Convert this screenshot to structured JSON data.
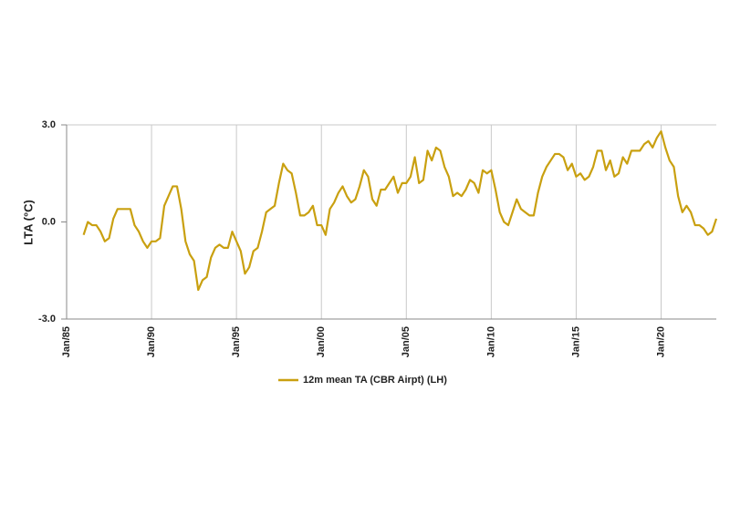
{
  "chart_data": {
    "type": "line",
    "y_label": "LTA (°C)",
    "categories": [
      "Jan/85",
      null,
      null,
      null,
      null,
      null,
      null,
      null,
      null,
      null,
      null,
      null,
      null,
      null,
      null,
      null,
      null,
      null,
      null,
      null,
      "Jan/90",
      null,
      null,
      null,
      null,
      null,
      null,
      null,
      null,
      null,
      null,
      null,
      null,
      null,
      null,
      null,
      null,
      null,
      null,
      null,
      "Jan/95",
      null,
      null,
      null,
      null,
      null,
      null,
      null,
      null,
      null,
      null,
      null,
      null,
      null,
      null,
      null,
      null,
      null,
      null,
      null,
      "Jan/00",
      null,
      null,
      null,
      null,
      null,
      null,
      null,
      null,
      null,
      null,
      null,
      null,
      null,
      null,
      null,
      null,
      null,
      null,
      null,
      "Jan/05",
      null,
      null,
      null,
      null,
      null,
      null,
      null,
      null,
      null,
      null,
      null,
      null,
      null,
      null,
      null,
      null,
      null,
      null,
      null,
      "Jan/10",
      null,
      null,
      null,
      null,
      null,
      null,
      null,
      null,
      null,
      null,
      null,
      null,
      null,
      null,
      null,
      null,
      null,
      null,
      null,
      "Jan/15",
      null,
      null,
      null,
      null,
      null,
      null,
      null,
      null,
      null,
      null,
      null,
      null,
      null,
      null,
      null,
      null,
      null,
      null,
      null,
      "Jan/20",
      null,
      null,
      null,
      null,
      null,
      null,
      null,
      null,
      null,
      null,
      null,
      null,
      null
    ],
    "series": [
      {
        "name": "12m mean TA (CBR Airpt) (LH)",
        "color": "#c9a010",
        "values": [
          null,
          null,
          null,
          null,
          -0.4,
          0.0,
          -0.1,
          -0.1,
          -0.3,
          -0.6,
          -0.5,
          0.1,
          0.4,
          0.4,
          0.4,
          0.4,
          -0.1,
          -0.3,
          -0.6,
          -0.8,
          -0.6,
          -0.6,
          -0.5,
          0.5,
          0.8,
          1.1,
          1.1,
          0.4,
          -0.6,
          -1.0,
          -1.2,
          -2.1,
          -1.8,
          -1.7,
          -1.1,
          -0.8,
          -0.7,
          -0.8,
          -0.8,
          -0.3,
          -0.6,
          -0.9,
          -1.6,
          -1.4,
          -0.9,
          -0.8,
          -0.3,
          0.3,
          0.4,
          0.5,
          1.2,
          1.8,
          1.6,
          1.5,
          0.9,
          0.2,
          0.2,
          0.3,
          0.5,
          -0.1,
          -0.1,
          -0.4,
          0.4,
          0.6,
          0.9,
          1.1,
          0.8,
          0.6,
          0.7,
          1.1,
          1.6,
          1.4,
          0.7,
          0.5,
          1.0,
          1.0,
          1.2,
          1.4,
          0.9,
          1.2,
          1.2,
          1.4,
          2.0,
          1.2,
          1.3,
          2.2,
          1.9,
          2.3,
          2.2,
          1.7,
          1.4,
          0.8,
          0.9,
          0.8,
          1.0,
          1.3,
          1.2,
          0.9,
          1.6,
          1.5,
          1.6,
          1.0,
          0.3,
          0.0,
          -0.1,
          0.3,
          0.7,
          0.4,
          0.3,
          0.2,
          0.2,
          0.9,
          1.4,
          1.7,
          1.9,
          2.1,
          2.1,
          2.0,
          1.6,
          1.8,
          1.4,
          1.5,
          1.3,
          1.4,
          1.7,
          2.2,
          2.2,
          1.6,
          1.9,
          1.4,
          1.5,
          2.0,
          1.8,
          2.2,
          2.2,
          2.2,
          2.4,
          2.5,
          2.3,
          2.6,
          2.8,
          2.3,
          1.9,
          1.7,
          0.8,
          0.3,
          0.5,
          0.3,
          -0.1,
          -0.1,
          -0.2,
          -0.4,
          -0.3,
          0.1
        ]
      }
    ],
    "ylim": [
      -3,
      3
    ],
    "yticks": [
      {
        "value": -3,
        "label": "-3.0"
      },
      {
        "value": 0,
        "label": "0.0"
      },
      {
        "value": 3,
        "label": "3.0"
      }
    ],
    "grid": true,
    "legend": "bottom"
  }
}
